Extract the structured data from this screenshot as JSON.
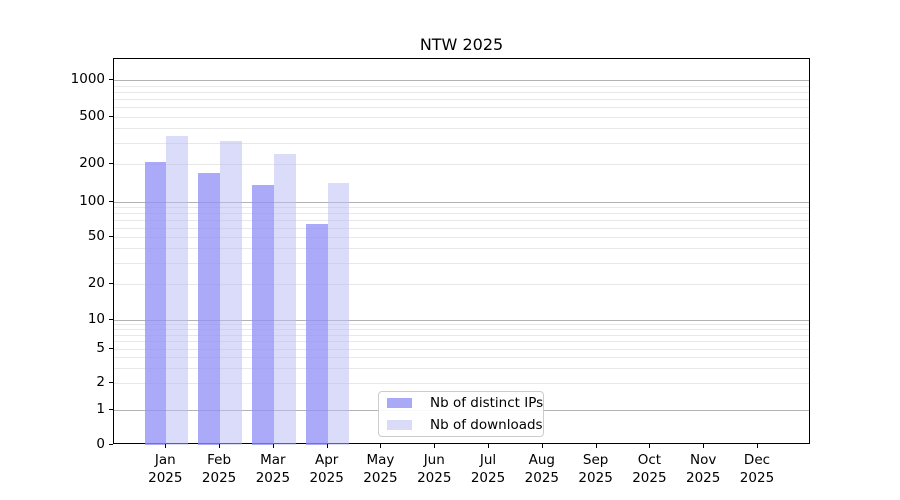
{
  "figure": {
    "title": "NTW 2025"
  },
  "chart_data": {
    "type": "bar",
    "title": "NTW 2025",
    "xlabel": "",
    "ylabel": "",
    "categories": [
      "Jan 2025",
      "Feb 2025",
      "Mar 2025",
      "Apr 2025",
      "May 2025",
      "Jun 2025",
      "Jul 2025",
      "Aug 2025",
      "Sep 2025",
      "Oct 2025",
      "Nov 2025",
      "Dec 2025"
    ],
    "x_month_labels": [
      "Jan",
      "Feb",
      "Mar",
      "Apr",
      "May",
      "Jun",
      "Jul",
      "Aug",
      "Sep",
      "Oct",
      "Nov",
      "Dec"
    ],
    "x_year_label": "2025",
    "series": [
      {
        "name": "Nb of distinct IPs",
        "legend_color": "#a9a9f7",
        "bar_fill": "rgba(146,146,246,0.78)",
        "values": [
          208,
          169,
          135,
          64,
          null,
          null,
          null,
          null,
          null,
          null,
          null,
          null
        ]
      },
      {
        "name": "Nb of downloads",
        "legend_color": "#dbdbf9",
        "bar_fill": "rgba(186,186,246,0.52)",
        "values": [
          342,
          315,
          243,
          141,
          null,
          null,
          null,
          null,
          null,
          null,
          null,
          null
        ]
      }
    ],
    "yticks": [
      0,
      1,
      2,
      5,
      10,
      20,
      50,
      100,
      200,
      500,
      1000
    ],
    "ylim": [
      0,
      1500
    ],
    "y_scale": "log-like (compressed below 10, linear 0-1)",
    "grid": "horizontal only, minor light / major dark at powers of 10",
    "legend_position": "inside axes, lower center"
  },
  "colors": {
    "major_gridline": "#b3b3b3",
    "minor_gridline": "#e8e8e8",
    "axis": "#000000",
    "text": "#000000",
    "background": "#ffffff",
    "legend_border": "#cccccc"
  }
}
